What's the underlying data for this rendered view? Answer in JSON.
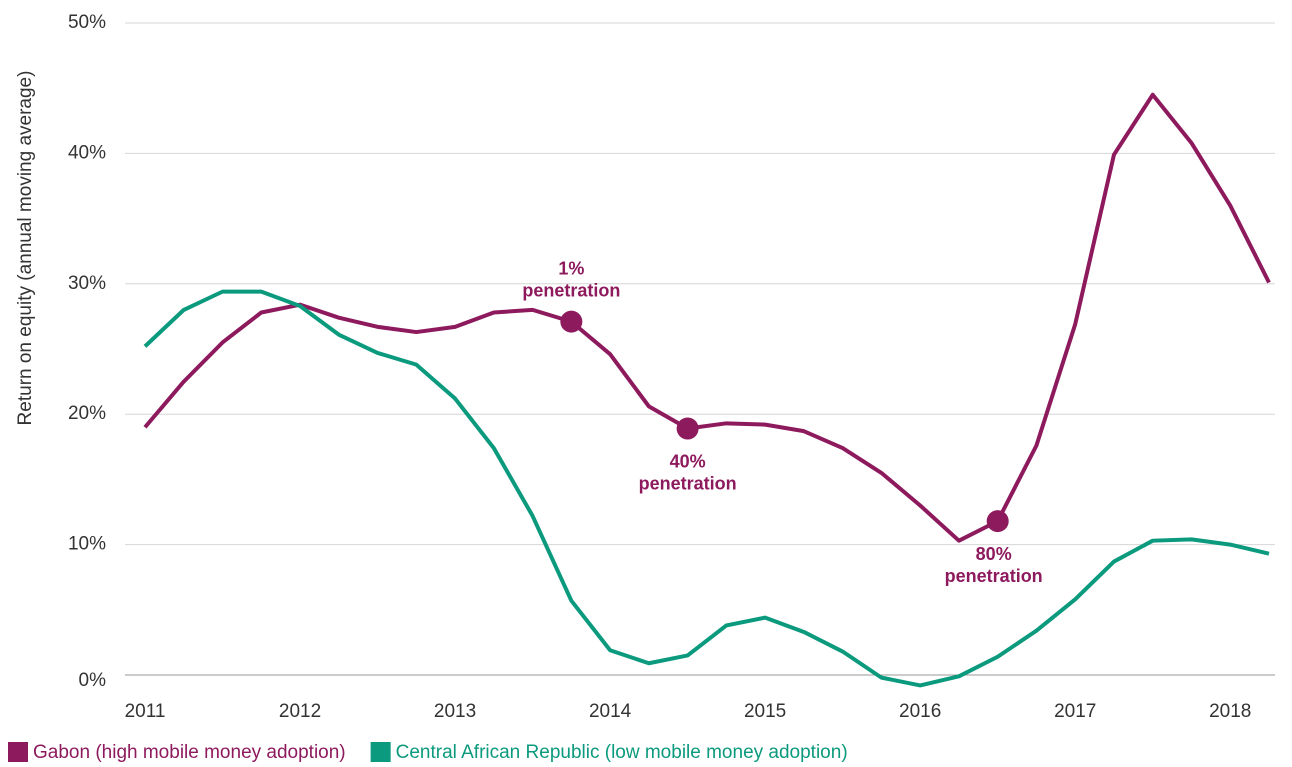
{
  "chart_data": {
    "type": "line",
    "ylabel": "Return on equity (annual moving average)",
    "x": [
      2011,
      2011.25,
      2011.5,
      2011.75,
      2012,
      2012.25,
      2012.5,
      2012.75,
      2013,
      2013.25,
      2013.5,
      2013.75,
      2014,
      2014.25,
      2014.5,
      2014.75,
      2015,
      2015.25,
      2015.5,
      2015.75,
      2016,
      2016.25,
      2016.5,
      2016.75,
      2017,
      2017.25,
      2017.5,
      2017.75,
      2018,
      2018.25
    ],
    "series": [
      {
        "name": "Gabon (high mobile money adoption)",
        "color": "#8e1a5e",
        "values": [
          19.0,
          22.5,
          25.5,
          27.8,
          28.4,
          27.4,
          26.7,
          26.3,
          26.7,
          27.8,
          28.0,
          27.1,
          24.6,
          20.6,
          18.9,
          19.3,
          19.2,
          18.7,
          17.4,
          15.5,
          13.0,
          10.3,
          11.8,
          17.6,
          26.9,
          39.9,
          44.5,
          40.8,
          36.0,
          30.1
        ]
      },
      {
        "name": "Central African Republic (low mobile money adoption)",
        "color": "#0b9a7d",
        "values": [
          25.2,
          28.0,
          29.4,
          29.4,
          28.3,
          26.1,
          24.7,
          23.8,
          21.2,
          17.4,
          12.2,
          5.7,
          1.9,
          0.9,
          1.5,
          3.8,
          4.4,
          3.3,
          1.8,
          -0.2,
          -0.8,
          -0.1,
          1.4,
          3.4,
          5.8,
          8.7,
          10.3,
          10.4,
          10.0,
          9.3
        ]
      }
    ],
    "annotations": [
      {
        "text": [
          "1%",
          "penetration"
        ],
        "x": 2013.75,
        "y": 27.1
      },
      {
        "text": [
          "40%",
          "penetration"
        ],
        "x": 2014.5,
        "y": 18.9
      },
      {
        "text": [
          "80%",
          "penetration"
        ],
        "x": 2016.5,
        "y": 11.8
      }
    ],
    "xlim": [
      2011,
      2018.25
    ],
    "xticks": [
      2011,
      2012,
      2013,
      2014,
      2015,
      2016,
      2017,
      2018
    ],
    "ylim": [
      0,
      50
    ],
    "yticks": [
      {
        "value": 0,
        "label": "0%"
      },
      {
        "value": 10,
        "label": "10%"
      },
      {
        "value": 20,
        "label": "20%"
      },
      {
        "value": 30,
        "label": "30%"
      },
      {
        "value": 40,
        "label": "40%"
      },
      {
        "value": 50,
        "label": "50%"
      }
    ],
    "grid": true,
    "legend": "bottom-left"
  }
}
